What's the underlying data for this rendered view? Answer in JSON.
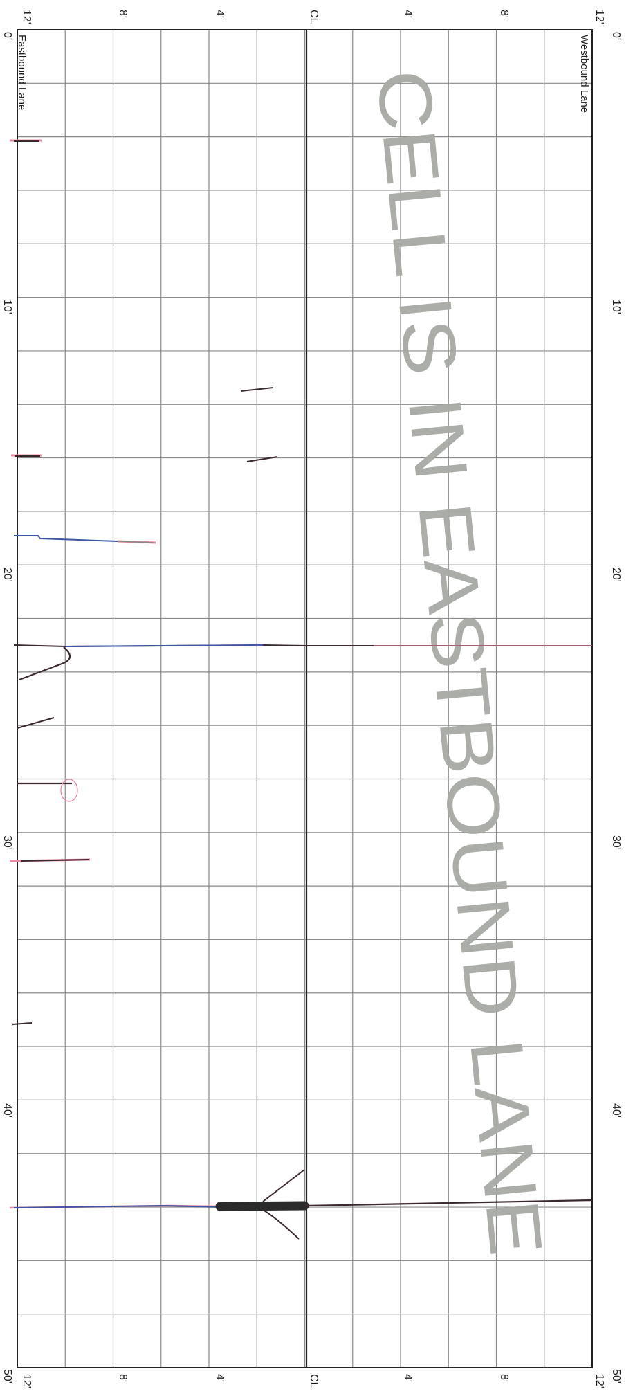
{
  "document": {
    "lane_labels": {
      "eastbound": "Eastbound Lane",
      "westbound": "Westbound Lane"
    },
    "lateral_axis_labels": [
      "12'",
      "8'",
      "4'",
      "CL",
      "4'",
      "8'",
      "12'"
    ],
    "lateral_axis_labels_bottom": [
      "12'",
      "8'",
      "4'",
      "CL",
      "4'",
      "8'",
      "12'"
    ],
    "longitudinal_labels_left": [
      "0'",
      "10'",
      "20'",
      "30'",
      "40'",
      "50'"
    ],
    "longitudinal_labels_right": [
      "0'",
      "10'",
      "20'",
      "30'",
      "40'",
      "50'"
    ],
    "stamp_text": "CELL IS IN EASTBOUND LANE",
    "colors": {
      "grid": "#8a8a8a",
      "frame": "#222222",
      "crack_dark": "#3a2a2f",
      "crack_blue": "#3f56a8",
      "crack_pink": "#e68aa0",
      "stamp": "#a7aaa4"
    }
  }
}
